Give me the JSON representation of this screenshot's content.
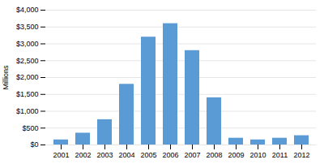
{
  "chart_data": {
    "type": "bar",
    "categories": [
      "2001",
      "2002",
      "2003",
      "2004",
      "2005",
      "2006",
      "2007",
      "2008",
      "2009",
      "2010",
      "2011",
      "2012"
    ],
    "values": [
      150,
      350,
      750,
      1800,
      3200,
      3600,
      2800,
      1400,
      200,
      150,
      200,
      275
    ],
    "color": "#5b9bd5",
    "ylabel": "Millions",
    "ylim": [
      0,
      4000
    ],
    "yticks": [
      {
        "value": 0,
        "label": "$0"
      },
      {
        "value": 500,
        "label": "$500"
      },
      {
        "value": 1000,
        "label": "$1,000"
      },
      {
        "value": 1500,
        "label": "$1,500"
      },
      {
        "value": 2000,
        "label": "$2,000"
      },
      {
        "value": 2500,
        "label": "$2,500"
      },
      {
        "value": 3000,
        "label": "$3,000"
      },
      {
        "value": 3500,
        "label": "$3,500"
      },
      {
        "value": 4000,
        "label": "$4,000"
      }
    ],
    "grid": true
  }
}
